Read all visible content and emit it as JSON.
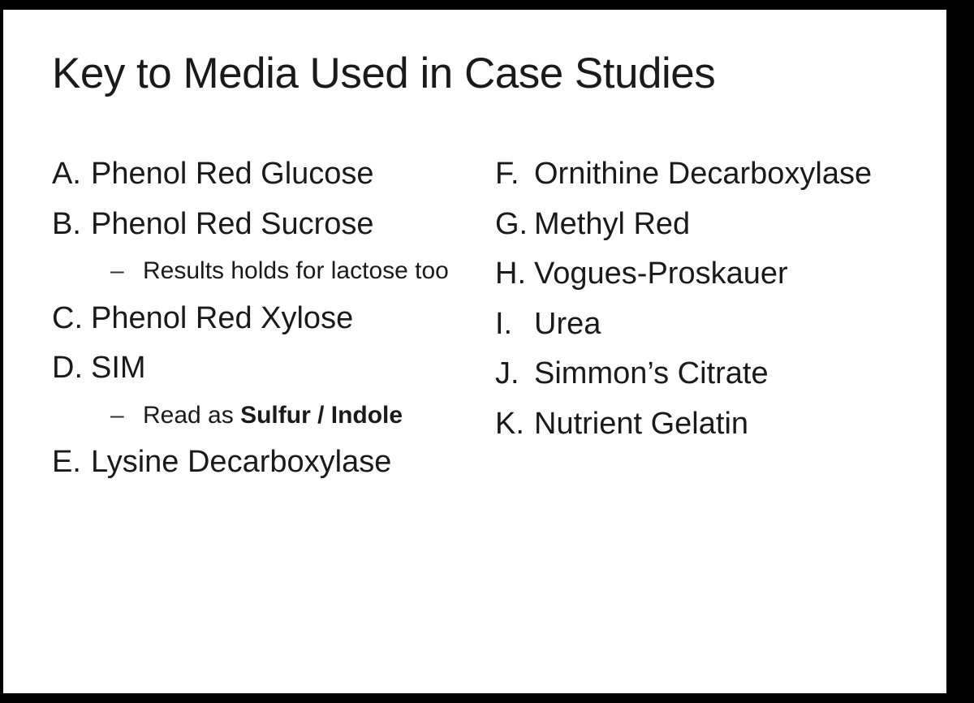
{
  "title": "Key to Media Used in Case Studies",
  "left": {
    "A": {
      "letter": "A.",
      "label": "Phenol Red Glucose"
    },
    "B": {
      "letter": "B.",
      "label": "Phenol Red Sucrose",
      "sub_dash": "–",
      "sub_text": "Results holds for lactose too"
    },
    "C": {
      "letter": "C.",
      "label": "Phenol Red Xylose"
    },
    "D": {
      "letter": "D.",
      "label": "SIM",
      "sub_dash": "–",
      "sub_prefix": "Read as ",
      "sub_bold": "Sulfur / Indole"
    },
    "E": {
      "letter": "E.",
      "label": "Lysine Decarboxylase"
    }
  },
  "right": {
    "F": {
      "letter": "F.",
      "label": "Ornithine Decarboxylase"
    },
    "G": {
      "letter": "G.",
      "label": "Methyl Red"
    },
    "H": {
      "letter": "H.",
      "label": "Vogues-Proskauer"
    },
    "I": {
      "letter": "I.",
      "label": "Urea"
    },
    "J": {
      "letter": "J.",
      "label": "Simmon’s Citrate"
    },
    "K": {
      "letter": "K.",
      "label": "Nutrient Gelatin"
    }
  },
  "style": {
    "background": "#000000",
    "slide_bg": "#ffffff",
    "text_color": "#1a1a1a",
    "title_fontsize": 53,
    "item_fontsize": 38,
    "sub_fontsize": 30
  }
}
